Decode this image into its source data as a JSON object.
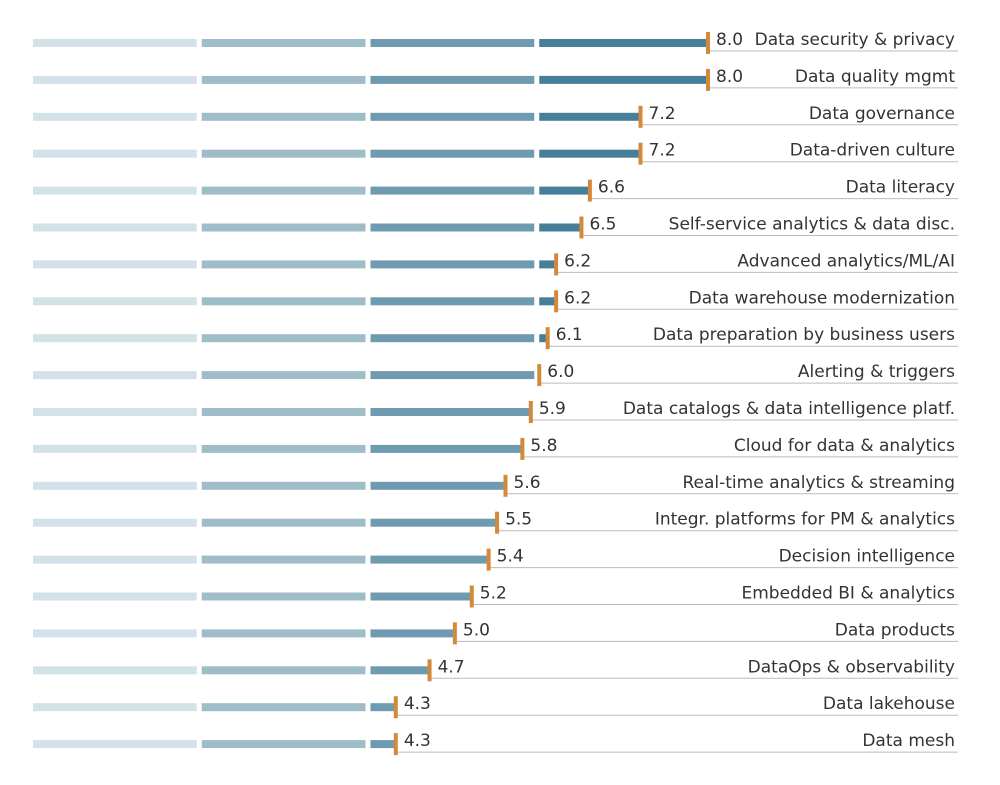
{
  "chart_data": {
    "type": "segmented-bar",
    "categories": [
      "Data security & privacy",
      "Data quality mgmt",
      "Data governance",
      "Data-driven culture",
      "Data literacy",
      "Self-service analytics & data disc.",
      "Advanced analytics/ML/AI",
      "Data warehouse modernization",
      "Data preparation by business users",
      "Alerting & triggers",
      "Data catalogs & data intelligence platf.",
      "Cloud for data & analytics",
      "Real-time analytics & streaming",
      "Integr. platforms for PM & analytics",
      "Decision intelligence",
      "Embedded BI & analytics",
      "Data products",
      "DataOps & observability",
      "Data lakehouse",
      "Data mesh"
    ],
    "values": [
      8.0,
      8.0,
      7.2,
      7.2,
      6.6,
      6.5,
      6.2,
      6.2,
      6.1,
      6.0,
      5.9,
      5.8,
      5.6,
      5.5,
      5.4,
      5.2,
      5.0,
      4.7,
      4.3,
      4.3
    ],
    "value_labels": [
      "8.0",
      "8.0",
      "7.2",
      "7.2",
      "6.6",
      "6.5",
      "6.2",
      "6.2",
      "6.1",
      "6.0",
      "5.9",
      "5.8",
      "5.6",
      "5.5",
      "5.4",
      "5.2",
      "5.0",
      "4.7",
      "4.3",
      "4.3"
    ],
    "xlim": [
      0,
      8
    ],
    "colors": [
      "#d3e1e8",
      "#9fbcc9",
      "#6e9bb0",
      "#467f98"
    ],
    "marker_color": "#d4893a"
  }
}
